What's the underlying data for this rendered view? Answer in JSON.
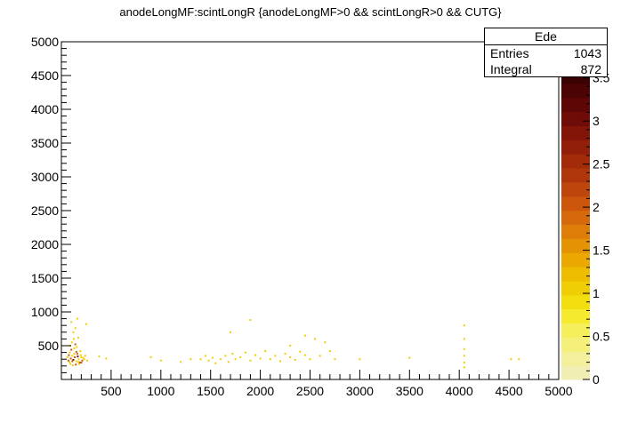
{
  "title": "anodeLongMF:scintLongR {anodeLongMF>0 && scintLongR>0 && CUTG}",
  "stats": {
    "name": "Ede",
    "rows": [
      {
        "label": "Entries",
        "value": "1043"
      },
      {
        "label": "Integral",
        "value": "872"
      }
    ]
  },
  "chart_data": {
    "type": "heatmap",
    "title": "anodeLongMF:scintLongR {anodeLongMF>0 && scintLongR>0 && CUTG}",
    "xlabel": "",
    "ylabel": "",
    "xlim": [
      0,
      5000
    ],
    "ylim": [
      0,
      5000
    ],
    "x_ticks": [
      500,
      1000,
      1500,
      2000,
      2500,
      3000,
      3500,
      4000,
      4500,
      5000
    ],
    "y_ticks": [
      500,
      1000,
      1500,
      2000,
      2500,
      3000,
      3500,
      4000,
      4500,
      5000
    ],
    "z_range": [
      0,
      3.6
    ],
    "z_ticks": [
      "0",
      "0.5",
      "1",
      "1.5",
      "2",
      "2.5",
      "3",
      "3.5"
    ],
    "z_tick_values": [
      0,
      0.5,
      1,
      1.5,
      2,
      2.5,
      3,
      3.5
    ],
    "palette": [
      "#f0eeb3",
      "#f3ef9b",
      "#f5f07a",
      "#f6ef5c",
      "#f5ea2e",
      "#f2de0f",
      "#efce05",
      "#eebd00",
      "#eaa800",
      "#e49304",
      "#de7e08",
      "#d6690b",
      "#cb560c",
      "#be450c",
      "#b0370b",
      "#a22b0a",
      "#921f09",
      "#821508",
      "#700c07",
      "#5e0605",
      "#4c0304",
      "#3a0202"
    ],
    "points": [
      [
        80,
        260,
        1
      ],
      [
        95,
        310,
        2
      ],
      [
        110,
        350,
        1
      ],
      [
        120,
        290,
        3
      ],
      [
        135,
        330,
        2
      ],
      [
        150,
        270,
        1
      ],
      [
        160,
        380,
        2
      ],
      [
        175,
        300,
        1
      ],
      [
        190,
        420,
        1
      ],
      [
        200,
        250,
        2
      ],
      [
        85,
        400,
        1
      ],
      [
        100,
        440,
        2
      ],
      [
        115,
        210,
        1
      ],
      [
        130,
        460,
        1
      ],
      [
        145,
        220,
        2
      ],
      [
        165,
        340,
        3
      ],
      [
        180,
        230,
        1
      ],
      [
        195,
        360,
        1
      ],
      [
        210,
        280,
        2
      ],
      [
        220,
        320,
        1
      ],
      [
        60,
        330,
        1
      ],
      [
        70,
        280,
        2
      ],
      [
        90,
        500,
        1
      ],
      [
        105,
        550,
        1
      ],
      [
        125,
        600,
        1
      ],
      [
        140,
        520,
        2
      ],
      [
        155,
        480,
        1
      ],
      [
        170,
        620,
        1
      ],
      [
        185,
        250,
        2
      ],
      [
        230,
        300,
        1
      ],
      [
        240,
        350,
        1
      ],
      [
        260,
        280,
        1
      ],
      [
        75,
        360,
        2
      ],
      [
        90,
        230,
        1
      ],
      [
        110,
        270,
        2
      ],
      [
        130,
        380,
        1
      ],
      [
        150,
        410,
        2
      ],
      [
        170,
        260,
        1
      ],
      [
        200,
        330,
        1
      ],
      [
        120,
        700,
        1
      ],
      [
        140,
        760,
        1
      ],
      [
        100,
        850,
        1
      ],
      [
        160,
        900,
        1
      ],
      [
        250,
        820,
        1
      ],
      [
        380,
        340,
        1
      ],
      [
        450,
        310,
        1
      ],
      [
        1400,
        300,
        1
      ],
      [
        1450,
        350,
        1
      ],
      [
        1480,
        280,
        1
      ],
      [
        1520,
        320,
        1
      ],
      [
        1550,
        240,
        1
      ],
      [
        1600,
        300,
        1
      ],
      [
        1650,
        350,
        1
      ],
      [
        1680,
        260,
        1
      ],
      [
        1720,
        380,
        1
      ],
      [
        1750,
        300,
        1
      ],
      [
        1800,
        330,
        1
      ],
      [
        1850,
        400,
        1
      ],
      [
        1900,
        280,
        1
      ],
      [
        1950,
        360,
        1
      ],
      [
        2000,
        310,
        1
      ],
      [
        2050,
        420,
        1
      ],
      [
        2100,
        300,
        1
      ],
      [
        2150,
        350,
        1
      ],
      [
        2200,
        270,
        1
      ],
      [
        2250,
        380,
        1
      ],
      [
        2300,
        330,
        1
      ],
      [
        2350,
        290,
        1
      ],
      [
        2400,
        410,
        1
      ],
      [
        2450,
        360,
        1
      ],
      [
        2500,
        300,
        1
      ],
      [
        2550,
        600,
        1
      ],
      [
        2600,
        350,
        1
      ],
      [
        2650,
        550,
        1
      ],
      [
        2700,
        420,
        1
      ],
      [
        2750,
        300,
        1
      ],
      [
        1300,
        300,
        1
      ],
      [
        1200,
        260,
        1
      ],
      [
        1000,
        280,
        1
      ],
      [
        900,
        330,
        1
      ],
      [
        1700,
        700,
        1
      ],
      [
        1900,
        880,
        1
      ],
      [
        2300,
        500,
        1
      ],
      [
        2450,
        650,
        1
      ],
      [
        3000,
        300,
        1
      ],
      [
        3500,
        320,
        1
      ],
      [
        4050,
        250,
        1
      ],
      [
        4050,
        350,
        1
      ],
      [
        4050,
        450,
        1
      ],
      [
        4050,
        600,
        1
      ],
      [
        4050,
        800,
        1
      ],
      [
        4050,
        180,
        1
      ],
      [
        4520,
        300,
        1
      ],
      [
        4600,
        300,
        1
      ]
    ]
  }
}
